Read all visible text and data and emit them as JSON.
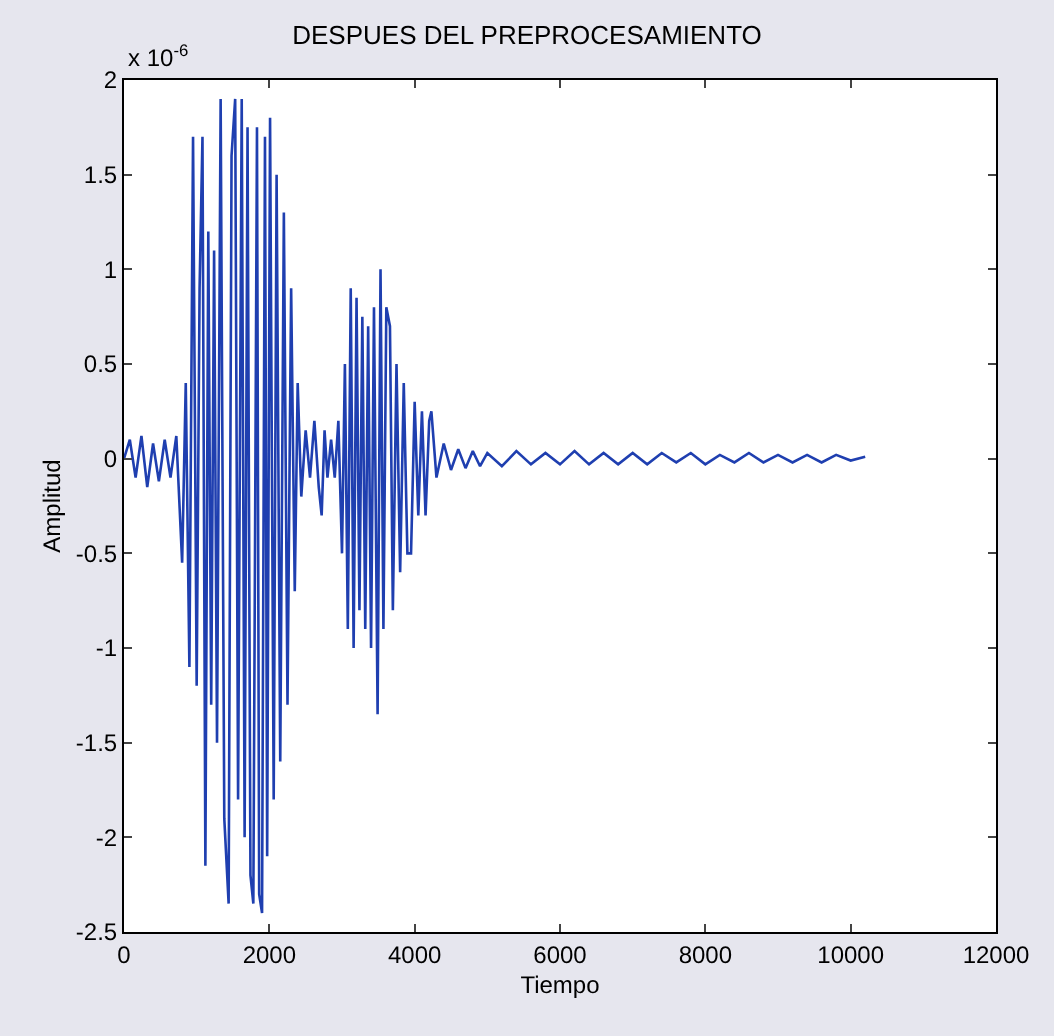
{
  "chart_data": {
    "type": "line",
    "title": "DESPUES DEL PREPROCESAMIENTO",
    "xlabel": "Tiempo",
    "ylabel": "Amplitud",
    "annotations": [
      "x 10$^{-6}$"
    ],
    "series": [
      {
        "color": "#1f3fb0",
        "x": [
          0,
          80,
          160,
          240,
          320,
          400,
          480,
          560,
          640,
          720,
          800,
          850,
          900,
          950,
          1000,
          1040,
          1080,
          1120,
          1160,
          1200,
          1240,
          1280,
          1330,
          1380,
          1440,
          1480,
          1530,
          1570,
          1620,
          1660,
          1700,
          1740,
          1780,
          1830,
          1860,
          1900,
          1940,
          1970,
          2010,
          2060,
          2100,
          2150,
          2200,
          2250,
          2300,
          2350,
          2390,
          2440,
          2500,
          2560,
          2620,
          2680,
          2720,
          2760,
          2800,
          2850,
          2900,
          2950,
          3000,
          3040,
          3080,
          3120,
          3160,
          3200,
          3240,
          3280,
          3320,
          3360,
          3400,
          3440,
          3490,
          3530,
          3570,
          3610,
          3660,
          3700,
          3750,
          3800,
          3850,
          3900,
          3950,
          4000,
          4050,
          4100,
          4150,
          4200,
          4230,
          4300,
          4400,
          4500,
          4600,
          4700,
          4800,
          4900,
          5000,
          5200,
          5400,
          5600,
          5800,
          6000,
          6200,
          6400,
          6600,
          6800,
          7000,
          7200,
          7400,
          7600,
          7800,
          8000,
          8200,
          8400,
          8600,
          8800,
          9000,
          9200,
          9400,
          9600,
          9800,
          10000,
          10200
        ],
        "values": [
          0,
          0.1,
          -0.1,
          0.12,
          -0.15,
          0.08,
          -0.12,
          0.1,
          -0.1,
          0.12,
          -0.55,
          0.4,
          -1.1,
          1.7,
          -1.2,
          0.9,
          1.7,
          -2.15,
          1.2,
          -1.3,
          1.1,
          -1.5,
          1.9,
          -1.9,
          -2.35,
          1.6,
          1.9,
          -1.8,
          1.9,
          -2.0,
          1.75,
          -2.2,
          -2.35,
          1.75,
          -2.3,
          -2.4,
          1.7,
          -2.1,
          1.8,
          -1.8,
          1.5,
          -1.6,
          1.3,
          -1.3,
          0.9,
          -0.7,
          0.4,
          -0.2,
          0.15,
          -0.1,
          0.2,
          -0.15,
          -0.3,
          0.15,
          -0.1,
          0.1,
          -0.1,
          0.2,
          -0.5,
          0.5,
          -0.9,
          0.9,
          -1.0,
          0.85,
          -0.8,
          0.75,
          -0.9,
          0.7,
          -1.0,
          0.8,
          -1.35,
          1.0,
          -0.9,
          0.8,
          0.7,
          -0.8,
          0.5,
          -0.6,
          0.4,
          -0.5,
          -0.5,
          0.3,
          -0.3,
          0.25,
          -0.3,
          0.2,
          0.25,
          -0.1,
          0.08,
          -0.06,
          0.05,
          -0.05,
          0.04,
          -0.04,
          0.03,
          -0.04,
          0.04,
          -0.03,
          0.03,
          -0.03,
          0.04,
          -0.03,
          0.03,
          -0.03,
          0.03,
          -0.03,
          0.03,
          -0.02,
          0.03,
          -0.03,
          0.02,
          -0.02,
          0.03,
          -0.02,
          0.02,
          -0.02,
          0.02,
          -0.02,
          0.02,
          -0.01,
          0.01
        ]
      }
    ],
    "xlim": [
      0,
      12000
    ],
    "ylim": [
      -2.5,
      2
    ],
    "xticks": [
      0,
      2000,
      4000,
      6000,
      8000,
      10000,
      12000
    ],
    "yticks": [
      -2.5,
      -2,
      -1.5,
      -1,
      -0.5,
      0,
      0.5,
      1,
      1.5,
      2
    ]
  }
}
